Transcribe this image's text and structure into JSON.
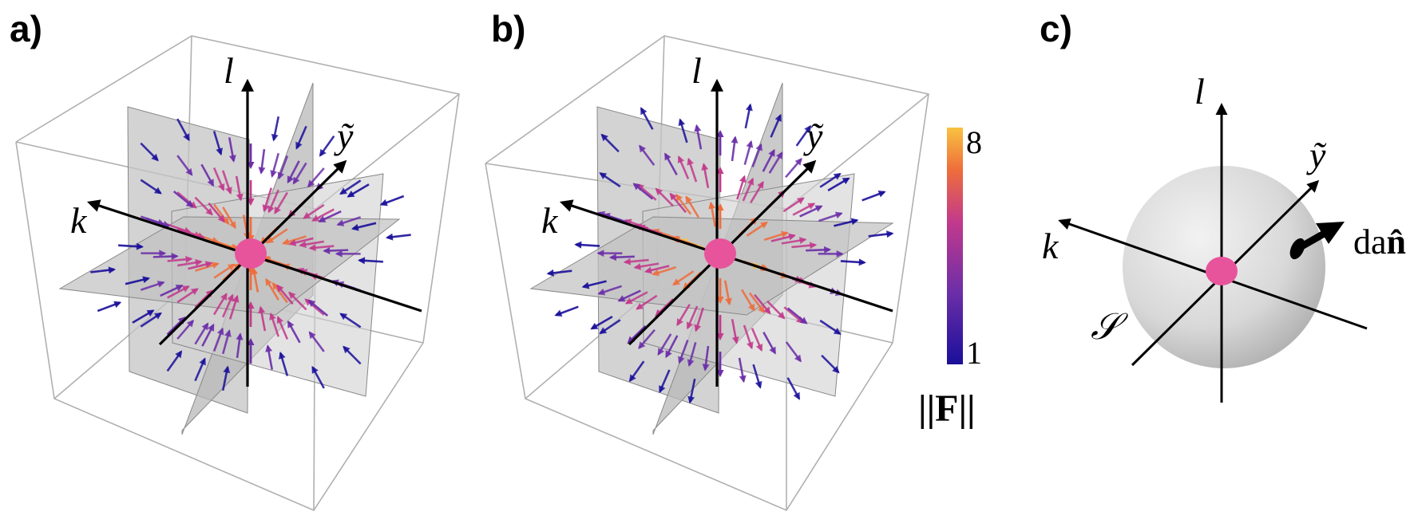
{
  "panels": [
    {
      "id": "a",
      "label": "a)",
      "axis_labels": {
        "k": "k",
        "l": "l",
        "y": "ỹ"
      },
      "field": "vector field on three orthogonal planes, arrows pointing toward the central point",
      "direction": "inward"
    },
    {
      "id": "b",
      "label": "b)",
      "axis_labels": {
        "k": "k",
        "l": "l",
        "y": "ỹ"
      },
      "direction": "outward"
    },
    {
      "id": "c",
      "label": "c)",
      "axis_labels": {
        "k": "k",
        "l": "l",
        "y": "ỹ"
      },
      "surface_label": "𝒮",
      "normal_label": "da",
      "normal_symbol": "n̂"
    }
  ],
  "colorbar": {
    "max_label": "8",
    "min_label": "1",
    "max_value": 8,
    "min_value": 1,
    "title": "||F||",
    "colors": [
      "#1a0f9a",
      "#6b2ea8",
      "#c2398c",
      "#ee6d3c",
      "#f9c240"
    ]
  },
  "colors": {
    "point": "#e8549c",
    "box_line": "#b0b0b0",
    "plane_fill": "#c4c4c4",
    "axis": "#000000"
  }
}
